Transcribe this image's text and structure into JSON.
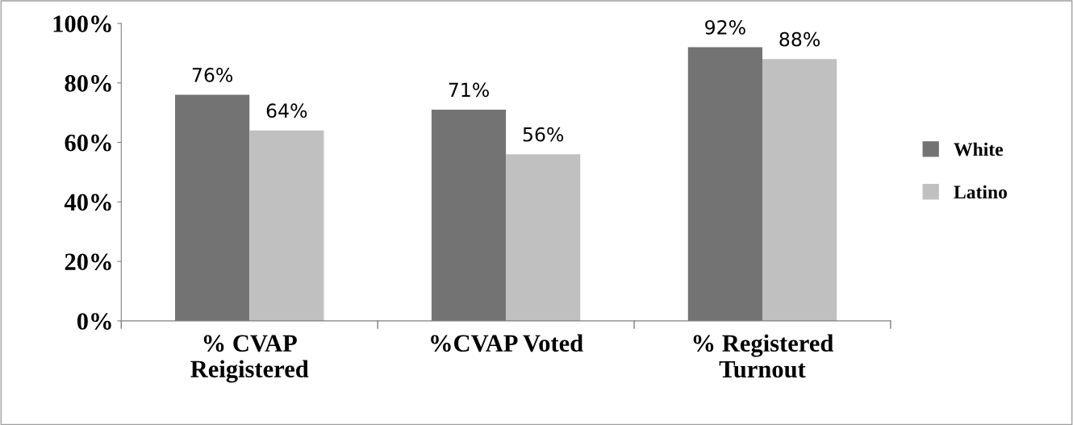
{
  "chart_data": {
    "type": "bar",
    "categories": [
      "% CVAP\nReigistered",
      "%CVAP Voted",
      "% Registered\nTurnout"
    ],
    "series": [
      {
        "name": "White",
        "color": "#737373",
        "values": [
          76,
          71,
          92
        ],
        "value_labels": [
          "76%",
          "71%",
          "92%"
        ]
      },
      {
        "name": "Latino",
        "color": "#c0c0c0",
        "values": [
          64,
          56,
          88
        ],
        "value_labels": [
          "64%",
          "56%",
          "88%"
        ]
      }
    ],
    "ylim": [
      0,
      100
    ],
    "yticks": [
      {
        "value": 0,
        "label": "0%"
      },
      {
        "value": 20,
        "label": "20%"
      },
      {
        "value": 40,
        "label": "40%"
      },
      {
        "value": 60,
        "label": "60%"
      },
      {
        "value": 80,
        "label": "80%"
      },
      {
        "value": 100,
        "label": "100%"
      }
    ],
    "grid": false,
    "legend": "right"
  }
}
